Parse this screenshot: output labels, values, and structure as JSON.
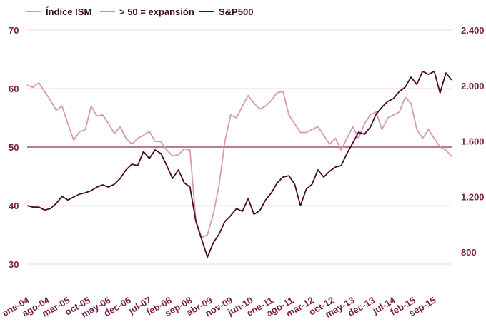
{
  "chart_data": {
    "type": "line",
    "title": "",
    "x_start": "2004-01",
    "x_step_months": 2,
    "x_tick_labels": [
      "ene-04",
      "ago-04",
      "mar-05",
      "oct-05",
      "may-06",
      "dec-06",
      "jul-07",
      "feb-08",
      "sep-08",
      "abr-09",
      "nov-09",
      "jun-10",
      "ene-11",
      "ago-11",
      "mar-12",
      "oct-12",
      "may-13",
      "dec-13",
      "jul-14",
      "feb-15",
      "sep-15"
    ],
    "y_left": {
      "ticks": [
        "70",
        "60",
        "50",
        "40",
        "30"
      ],
      "tick_values": [
        70,
        60,
        50,
        40,
        30
      ],
      "ylim": [
        30,
        70
      ]
    },
    "y_right": {
      "ticks": [
        "2.400",
        "2.000",
        "1.600",
        "1.200",
        "800"
      ],
      "tick_values": [
        2400,
        2000,
        1600,
        1200,
        800
      ],
      "ylim": [
        713,
        2400
      ]
    },
    "grid": true,
    "legend_position": "top-left",
    "series": [
      {
        "name": "Índice ISM",
        "axis": "left",
        "color": "#d49ab5",
        "values": [
          60.6,
          60.2,
          61.0,
          59.5,
          58.0,
          56.3,
          57.0,
          54.0,
          51.2,
          52.6,
          53.0,
          57.0,
          55.3,
          55.5,
          54.0,
          52.3,
          53.5,
          51.5,
          50.5,
          51.5,
          52.0,
          52.7,
          51.0,
          50.9,
          49.5,
          48.5,
          48.7,
          49.7,
          49.5,
          37.5,
          34.5,
          35.0,
          38.5,
          43.5,
          51.0,
          55.5,
          55.0,
          57.0,
          58.8,
          57.5,
          56.5,
          57.0,
          58.0,
          59.3,
          59.5,
          55.5,
          54.0,
          52.5,
          52.5,
          53.0,
          53.5,
          52.0,
          50.5,
          51.5,
          49.5,
          51.5,
          53.5,
          51.5,
          54.0,
          55.5,
          56.0,
          53.0,
          55.0,
          55.5,
          56.0,
          58.5,
          57.5,
          53.0,
          51.5,
          53.0,
          51.5,
          50.0,
          49.5,
          48.4
        ]
      },
      {
        "name": "> 50 = expansión",
        "axis": "left",
        "color": "#8b2e55",
        "constant": 50
      },
      {
        "name": "S&P500",
        "axis": "right",
        "color": "#4a0a2a",
        "values": [
          1134,
          1124,
          1124,
          1103,
          1113,
          1150,
          1201,
          1175,
          1196,
          1217,
          1227,
          1242,
          1268,
          1284,
          1268,
          1289,
          1330,
          1392,
          1433,
          1423,
          1525,
          1474,
          1536,
          1510,
          1423,
          1330,
          1392,
          1299,
          1268,
          1021,
          892,
          764,
          867,
          929,
          1021,
          1062,
          1113,
          1093,
          1185,
          1072,
          1098,
          1175,
          1227,
          1299,
          1340,
          1350,
          1289,
          1134,
          1253,
          1289,
          1392,
          1340,
          1381,
          1412,
          1423,
          1510,
          1587,
          1664,
          1649,
          1700,
          1793,
          1844,
          1886,
          1906,
          1958,
          1988,
          2060,
          2009,
          2102,
          2081,
          2102,
          1947,
          2091,
          2040
        ]
      }
    ]
  }
}
